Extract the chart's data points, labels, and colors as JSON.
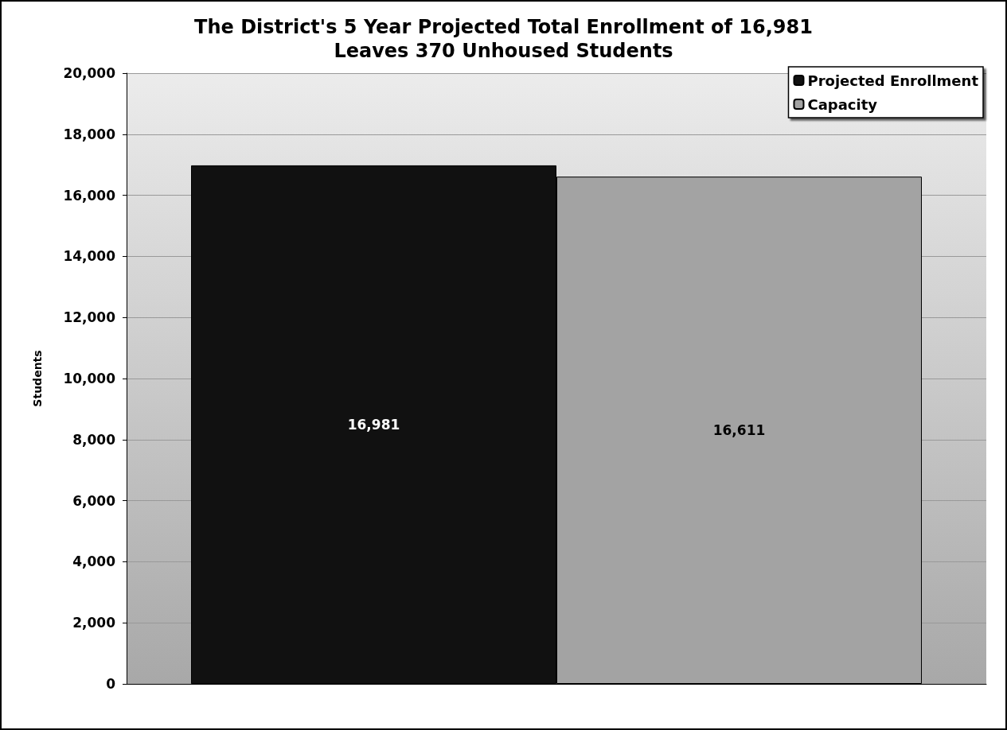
{
  "chart_data": {
    "type": "bar",
    "title": "The District's 5 Year Projected Total Enrollment of 16,981\nLeaves 370 Unhoused Students",
    "ylabel": "Students",
    "categories": [
      null
    ],
    "series": [
      {
        "name": "Projected Enrollment",
        "color": "#111111",
        "values": [
          16981
        ],
        "value_labels": [
          "16,981"
        ]
      },
      {
        "name": "Capacity",
        "color": "#a3a3a3",
        "values": [
          16611
        ],
        "value_labels": [
          "16,611"
        ]
      }
    ],
    "ylim": [
      0,
      20000
    ],
    "yticks": [
      {
        "value": 0,
        "label": "0"
      },
      {
        "value": 2000,
        "label": "2,000"
      },
      {
        "value": 4000,
        "label": "4,000"
      },
      {
        "value": 6000,
        "label": "6,000"
      },
      {
        "value": 8000,
        "label": "8,000"
      },
      {
        "value": 10000,
        "label": "10,000"
      },
      {
        "value": 12000,
        "label": "12,000"
      },
      {
        "value": 14000,
        "label": "14,000"
      },
      {
        "value": 16000,
        "label": "16,000"
      },
      {
        "value": 18000,
        "label": "18,000"
      },
      {
        "value": 20000,
        "label": "20,000"
      }
    ],
    "grid": "y",
    "legend": "top right"
  }
}
